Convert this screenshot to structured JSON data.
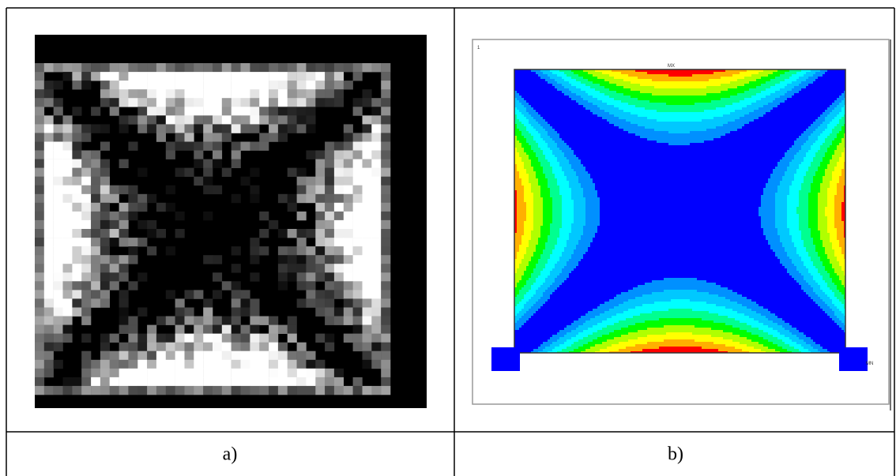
{
  "figure": {
    "panels": [
      {
        "label": "a)"
      },
      {
        "label": "b)",
        "corner_text": "1",
        "top_text": "MX",
        "side_text": "MN"
      }
    ]
  }
}
